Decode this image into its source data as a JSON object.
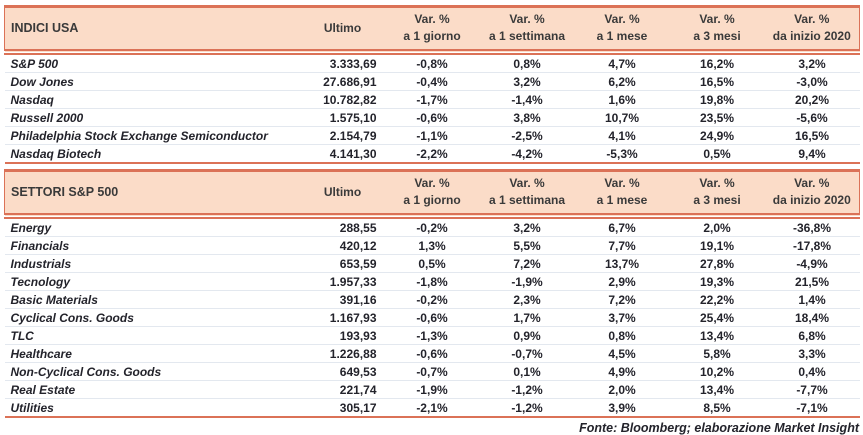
{
  "colors": {
    "accent_border": "#db7257",
    "header_background": "#fbdcc8",
    "header_text": "#3a3a3a",
    "data_text": "#23232b",
    "row_separator": "#e3e8ef"
  },
  "columns": {
    "ultimo": "Ultimo",
    "var_label": "Var. %",
    "subs": [
      "a 1 giorno",
      "a 1 settimana",
      "a 1 mese",
      "a 3 mesi",
      "da inizio 2020"
    ]
  },
  "sections": [
    {
      "title": "INDICI USA",
      "rows": [
        {
          "name": "S&P 500",
          "ultimo": "3.333,69",
          "vars": [
            "-0,8%",
            "0,8%",
            "4,7%",
            "16,2%",
            "3,2%"
          ]
        },
        {
          "name": "Dow Jones",
          "ultimo": "27.686,91",
          "vars": [
            "-0,4%",
            "3,2%",
            "6,2%",
            "16,5%",
            "-3,0%"
          ]
        },
        {
          "name": "Nasdaq",
          "ultimo": "10.782,82",
          "vars": [
            "-1,7%",
            "-1,4%",
            "1,6%",
            "19,8%",
            "20,2%"
          ]
        },
        {
          "name": "Russell 2000",
          "ultimo": "1.575,10",
          "vars": [
            "-0,6%",
            "3,8%",
            "10,7%",
            "23,5%",
            "-5,6%"
          ]
        },
        {
          "name": "Philadelphia Stock Exchange Semiconductor",
          "ultimo": "2.154,79",
          "vars": [
            "-1,1%",
            "-2,5%",
            "4,1%",
            "24,9%",
            "16,5%"
          ]
        },
        {
          "name": "Nasdaq Biotech",
          "ultimo": "4.141,30",
          "vars": [
            "-2,2%",
            "-4,2%",
            "-5,3%",
            "0,5%",
            "9,4%"
          ]
        }
      ]
    },
    {
      "title": "SETTORI S&P 500",
      "rows": [
        {
          "name": "Energy",
          "ultimo": "288,55",
          "vars": [
            "-0,2%",
            "3,2%",
            "6,7%",
            "2,0%",
            "-36,8%"
          ]
        },
        {
          "name": "Financials",
          "ultimo": "420,12",
          "vars": [
            "1,3%",
            "5,5%",
            "7,7%",
            "19,1%",
            "-17,8%"
          ]
        },
        {
          "name": "Industrials",
          "ultimo": "653,59",
          "vars": [
            "0,5%",
            "7,2%",
            "13,7%",
            "27,8%",
            "-4,9%"
          ]
        },
        {
          "name": "Tecnology",
          "ultimo": "1.957,33",
          "vars": [
            "-1,8%",
            "-1,9%",
            "2,9%",
            "19,3%",
            "21,5%"
          ]
        },
        {
          "name": "Basic Materials",
          "ultimo": "391,16",
          "vars": [
            "-0,2%",
            "2,3%",
            "7,2%",
            "22,2%",
            "1,4%"
          ]
        },
        {
          "name": "Cyclical Cons. Goods",
          "ultimo": "1.167,93",
          "vars": [
            "-0,6%",
            "1,7%",
            "3,7%",
            "25,4%",
            "18,4%"
          ]
        },
        {
          "name": "TLC",
          "ultimo": "193,93",
          "vars": [
            "-1,3%",
            "0,9%",
            "0,8%",
            "13,4%",
            "6,8%"
          ]
        },
        {
          "name": "Healthcare",
          "ultimo": "1.226,88",
          "vars": [
            "-0,6%",
            "-0,7%",
            "4,5%",
            "5,8%",
            "3,3%"
          ]
        },
        {
          "name": "Non-Cyclical Cons. Goods",
          "ultimo": "649,53",
          "vars": [
            "-0,7%",
            "0,1%",
            "4,9%",
            "10,2%",
            "0,4%"
          ]
        },
        {
          "name": "Real Estate",
          "ultimo": "221,74",
          "vars": [
            "-1,9%",
            "-1,2%",
            "2,0%",
            "13,4%",
            "-7,7%"
          ]
        },
        {
          "name": "Utilities",
          "ultimo": "305,17",
          "vars": [
            "-2,1%",
            "-1,2%",
            "3,9%",
            "8,5%",
            "-7,1%"
          ]
        }
      ]
    }
  ],
  "footer": "Fonte: Bloomberg; elaborazione Market Insight"
}
